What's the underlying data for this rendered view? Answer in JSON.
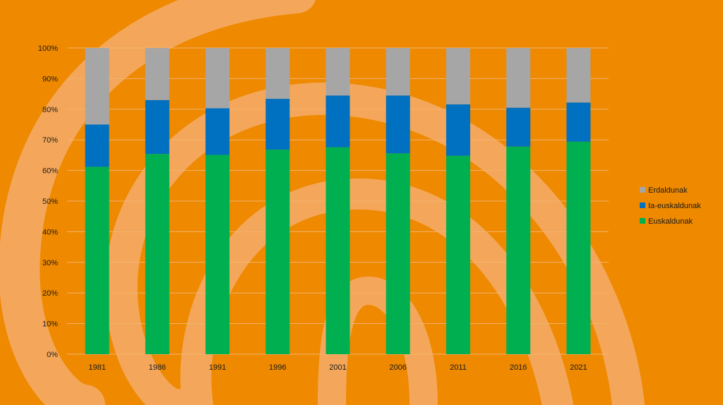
{
  "chart_data": {
    "type": "bar",
    "stacked": true,
    "categories": [
      "1981",
      "1986",
      "1991",
      "1996",
      "2001",
      "2006",
      "2011",
      "2016",
      "2021"
    ],
    "series": [
      {
        "name": "Euskaldunak",
        "color": "#00b050",
        "values": [
          61.2,
          65.4,
          65.1,
          66.8,
          67.6,
          65.6,
          64.8,
          67.8,
          69.4
        ]
      },
      {
        "name": "Ia-euskaldunak",
        "color": "#0070c0",
        "values": [
          13.8,
          17.6,
          15.2,
          16.6,
          16.9,
          18.9,
          16.8,
          12.7,
          12.8
        ]
      },
      {
        "name": "Erdaldunak",
        "color": "#a6a6a6",
        "values": [
          25.0,
          17.0,
          19.7,
          16.6,
          15.5,
          15.5,
          18.4,
          19.5,
          17.8
        ]
      }
    ],
    "ylim": [
      0,
      100
    ],
    "yticks": [
      "0%",
      "10%",
      "20%",
      "30%",
      "40%",
      "50%",
      "60%",
      "70%",
      "80%",
      "90%",
      "100%"
    ],
    "grid": true,
    "legend": {
      "position": "right",
      "order": [
        "Erdaldunak",
        "Ia-euskaldunak",
        "Euskaldunak"
      ]
    }
  }
}
